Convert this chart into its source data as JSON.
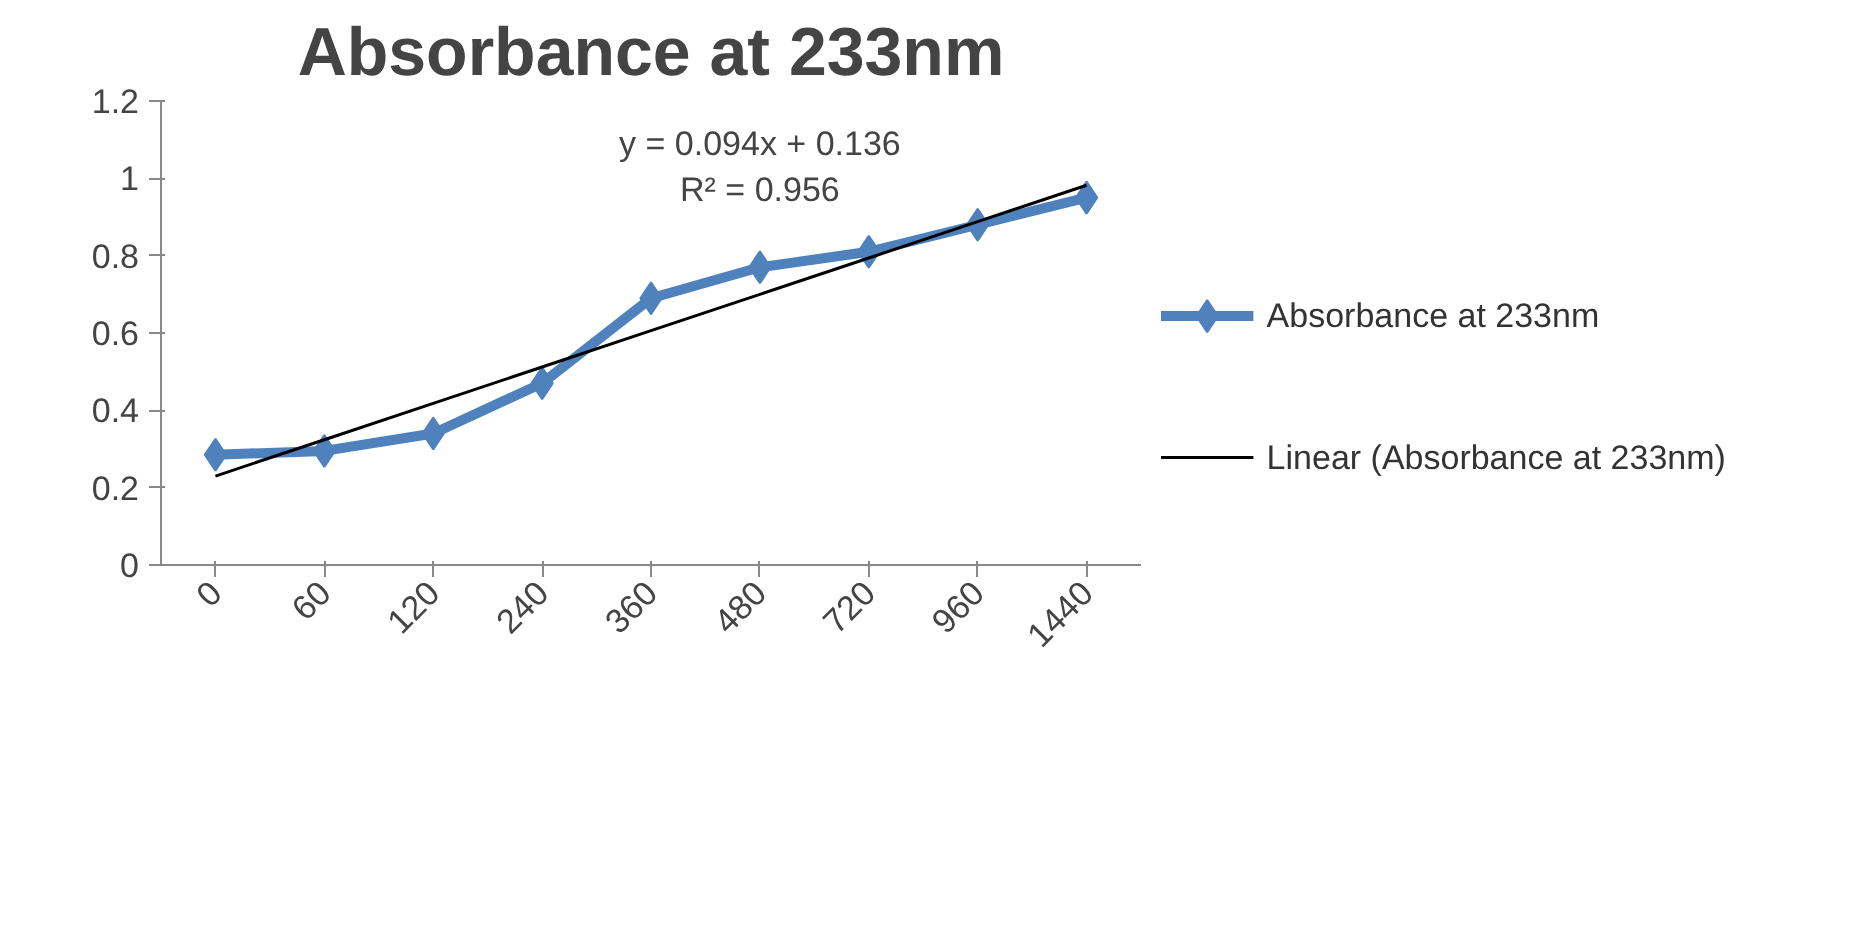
{
  "chart_data": {
    "type": "line",
    "title": "Absorbance at 233nm",
    "categories": [
      "0",
      "60",
      "120",
      "240",
      "360",
      "480",
      "720",
      "960",
      "1440"
    ],
    "series": [
      {
        "name": "Absorbance at 233nm",
        "color": "#4f81bd",
        "marker": "diamond",
        "values": [
          0.285,
          0.295,
          0.34,
          0.47,
          0.69,
          0.77,
          0.81,
          0.88,
          0.95
        ]
      },
      {
        "name": "Linear (Absorbance at 233nm)",
        "color": "#000000",
        "marker": "none",
        "values": [
          0.23,
          0.324,
          0.418,
          0.512,
          0.606,
          0.7,
          0.794,
          0.888,
          0.982
        ]
      }
    ],
    "ylim": [
      0,
      1.2
    ],
    "yticks": [
      0,
      {
        "value": 0.2,
        "label": "0.2"
      },
      {
        "value": 0.4,
        "label": "0.4"
      },
      {
        "value": 0.6,
        "label": "0.6"
      },
      {
        "value": 0.8,
        "label": "0.8"
      },
      1,
      {
        "value": 1.2,
        "label": "1.2"
      }
    ],
    "grid": false,
    "legend": "right",
    "annotations": [
      "y = 0.094x + 0.136",
      "R² = 0.956"
    ]
  }
}
